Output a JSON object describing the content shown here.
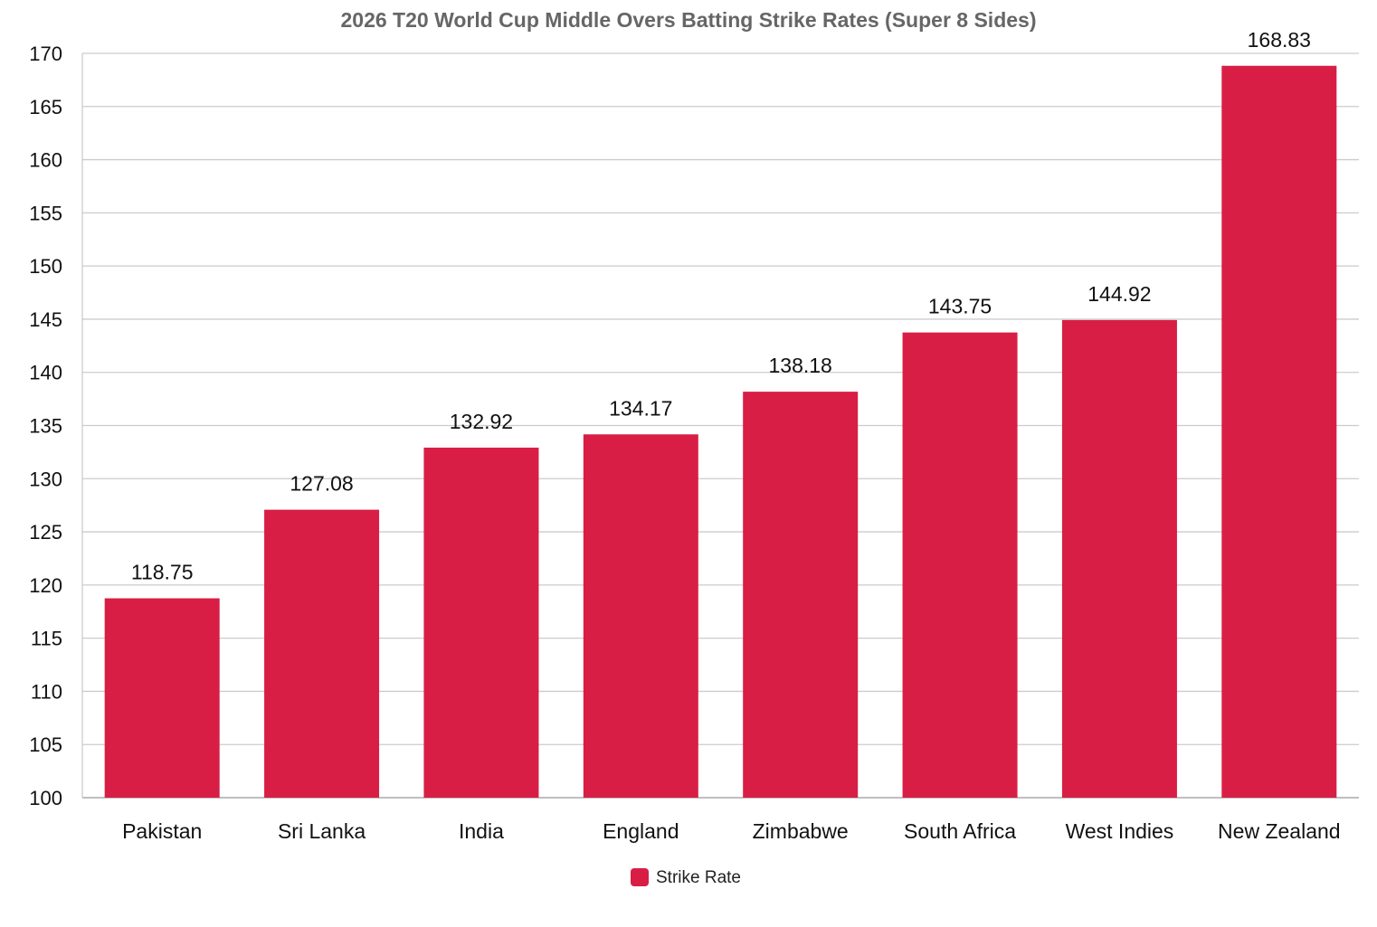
{
  "chart_data": {
    "type": "bar",
    "title": "2026 T20 World Cup Middle Overs Batting Strike Rates (Super 8 Sides)",
    "xlabel": "",
    "ylabel": "",
    "categories": [
      "Pakistan",
      "Sri Lanka",
      "India",
      "England",
      "Zimbabwe",
      "South Africa",
      "West Indies",
      "New Zealand"
    ],
    "series": [
      {
        "name": "Strike Rate",
        "values": [
          118.75,
          127.08,
          132.92,
          134.17,
          138.18,
          143.75,
          144.92,
          168.83
        ],
        "color": "#d81e44"
      }
    ],
    "ylim": [
      100,
      170
    ],
    "yticks": [
      100,
      105,
      110,
      115,
      120,
      125,
      130,
      135,
      140,
      145,
      150,
      155,
      160,
      165,
      170
    ],
    "grid": true,
    "legend_position": "bottom-center",
    "colors": {
      "bar": "#d81e44",
      "grid": "#cccccc",
      "axis": "#aaaaaa",
      "title": "#666666"
    }
  }
}
